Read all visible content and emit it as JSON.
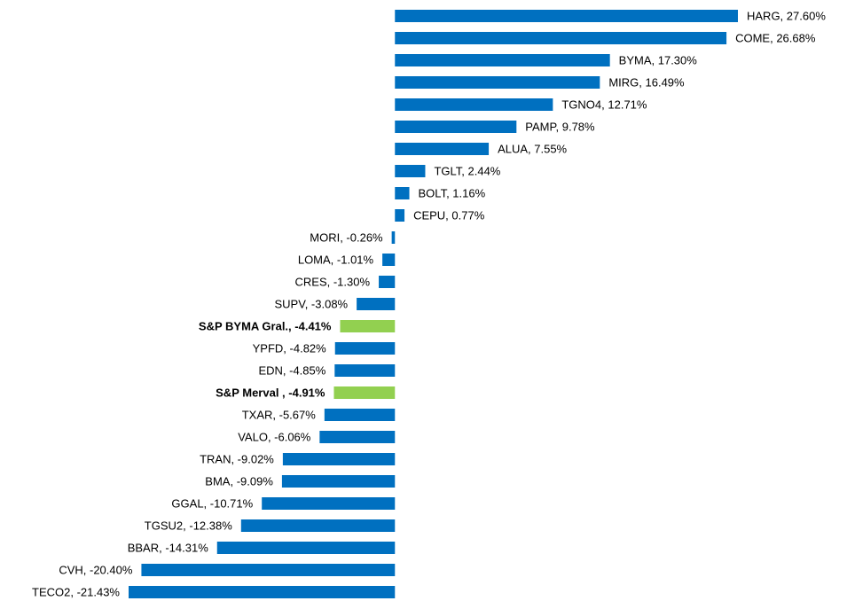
{
  "chart_data": {
    "type": "bar",
    "orientation": "horizontal",
    "value_labels": [
      "HARG, 27.60%",
      "COME, 26.68%",
      "BYMA, 17.30%",
      "MIRG, 16.49%",
      "TGNO4, 12.71%",
      "PAMP, 9.78%",
      "ALUA, 7.55%",
      "TGLT, 2.44%",
      "BOLT, 1.16%",
      "CEPU, 0.77%",
      "MORI, -0.26%",
      "LOMA, -1.01%",
      "CRES, -1.30%",
      "SUPV, -3.08%",
      "S&P BYMA Gral., -4.41%",
      "YPFD, -4.82%",
      "EDN, -4.85%",
      "S&P Merval , -4.91%",
      "TXAR, -5.67%",
      "VALO, -6.06%",
      "TRAN, -9.02%",
      "BMA, -9.09%",
      "GGAL, -10.71%",
      "TGSU2, -12.38%",
      "BBAR, -14.31%",
      "CVH, -20.40%",
      "TECO2, -21.43%"
    ],
    "values": [
      27.6,
      26.68,
      17.3,
      16.49,
      12.71,
      9.78,
      7.55,
      2.44,
      1.16,
      0.77,
      -0.26,
      -1.01,
      -1.3,
      -3.08,
      -4.41,
      -4.82,
      -4.85,
      -4.91,
      -5.67,
      -6.06,
      -9.02,
      -9.09,
      -10.71,
      -12.38,
      -14.31,
      -20.4,
      -21.43
    ],
    "colors": [
      "#0070c0",
      "#0070c0",
      "#0070c0",
      "#0070c0",
      "#0070c0",
      "#0070c0",
      "#0070c0",
      "#0070c0",
      "#0070c0",
      "#0070c0",
      "#0070c0",
      "#0070c0",
      "#0070c0",
      "#0070c0",
      "#92d050",
      "#0070c0",
      "#0070c0",
      "#92d050",
      "#0070c0",
      "#0070c0",
      "#0070c0",
      "#0070c0",
      "#0070c0",
      "#0070c0",
      "#0070c0",
      "#0070c0",
      "#0070c0"
    ],
    "highlight_color": "#92d050"
  }
}
